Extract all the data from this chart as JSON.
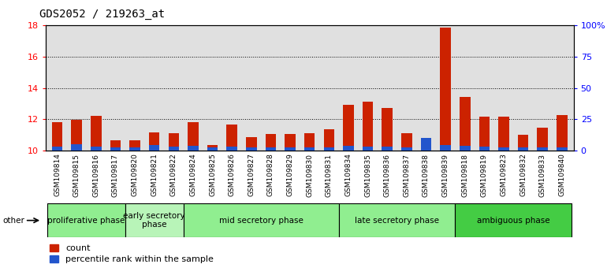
{
  "title": "GDS2052 / 219263_at",
  "samples": [
    "GSM109814",
    "GSM109815",
    "GSM109816",
    "GSM109817",
    "GSM109820",
    "GSM109821",
    "GSM109822",
    "GSM109824",
    "GSM109825",
    "GSM109826",
    "GSM109827",
    "GSM109828",
    "GSM109829",
    "GSM109830",
    "GSM109831",
    "GSM109834",
    "GSM109835",
    "GSM109836",
    "GSM109837",
    "GSM109838",
    "GSM109839",
    "GSM109818",
    "GSM109819",
    "GSM109823",
    "GSM109832",
    "GSM109833",
    "GSM109840"
  ],
  "count_values": [
    11.8,
    11.95,
    12.2,
    10.65,
    10.65,
    11.15,
    11.1,
    11.8,
    10.35,
    11.65,
    10.85,
    11.05,
    11.05,
    11.1,
    11.35,
    12.9,
    13.1,
    12.7,
    11.1,
    10.6,
    17.85,
    13.4,
    12.15,
    12.15,
    11.0,
    11.45,
    12.25
  ],
  "percentile_values": [
    3.5,
    5.0,
    3.0,
    2.5,
    2.5,
    4.5,
    3.0,
    4.0,
    2.5,
    3.0,
    2.5,
    2.5,
    2.5,
    2.5,
    2.5,
    4.0,
    3.5,
    3.0,
    2.5,
    10.0,
    4.5,
    4.0,
    3.0,
    2.5,
    2.5,
    2.5,
    2.5
  ],
  "ylim_left": [
    10,
    18
  ],
  "ylim_right": [
    0,
    100
  ],
  "yticks_left": [
    10,
    12,
    14,
    16,
    18
  ],
  "yticks_right": [
    0,
    25,
    50,
    75,
    100
  ],
  "ytick_labels_right": [
    "0",
    "25",
    "50",
    "75",
    "100%"
  ],
  "count_color": "#cc2200",
  "percentile_color": "#2255cc",
  "plot_bg_color": "#e0e0e0",
  "tick_area_bg_color": "#c8c8c8",
  "phases": [
    {
      "label": "proliferative phase",
      "start": 0,
      "end": 4,
      "color": "#90ee90"
    },
    {
      "label": "early secretory\nphase",
      "start": 4,
      "end": 7,
      "color": "#b8f4b8"
    },
    {
      "label": "mid secretory phase",
      "start": 7,
      "end": 15,
      "color": "#90ee90"
    },
    {
      "label": "late secretory phase",
      "start": 15,
      "end": 21,
      "color": "#90ee90"
    },
    {
      "label": "ambiguous phase",
      "start": 21,
      "end": 27,
      "color": "#44cc44"
    }
  ],
  "legend_count_label": "count",
  "legend_pct_label": "percentile rank within the sample",
  "other_label": "other",
  "title_fontsize": 10,
  "tick_fontsize": 6.5,
  "phase_fontsize": 7.5,
  "axis_fontsize": 8
}
